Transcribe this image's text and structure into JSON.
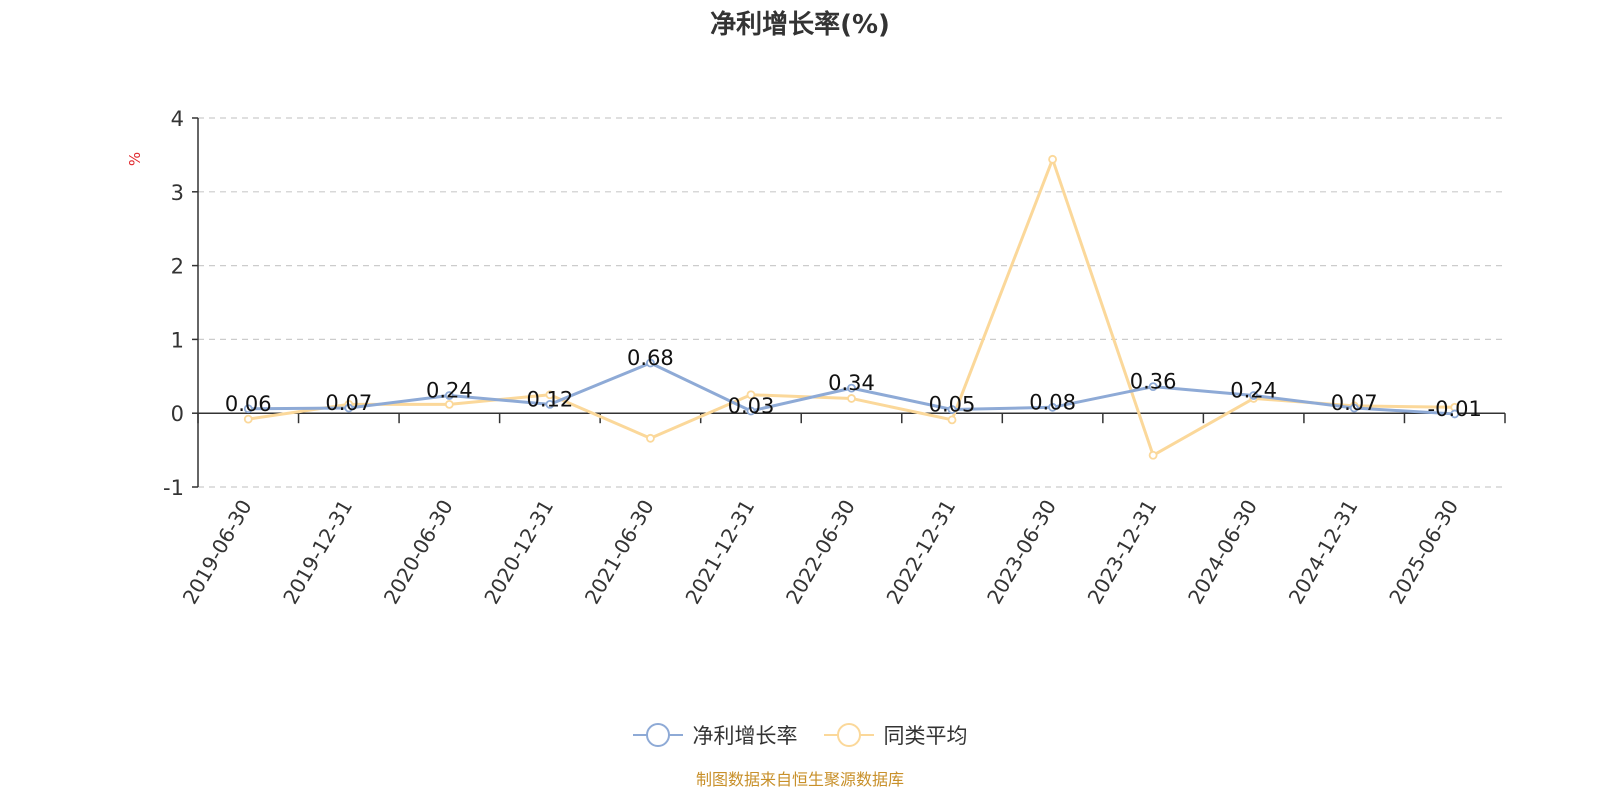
{
  "chart_data": {
    "type": "line",
    "title": "净利增长率(%)",
    "ylabel": "%",
    "ylim": [
      -1,
      4
    ],
    "yticks": [
      -1,
      0,
      1,
      2,
      3,
      4
    ],
    "grid": true,
    "legend_position": "bottom",
    "categories": [
      "2019-06-30",
      "2019-12-31",
      "2020-06-30",
      "2020-12-31",
      "2021-06-30",
      "2021-12-31",
      "2022-06-30",
      "2022-12-31",
      "2023-06-30",
      "2023-12-31",
      "2024-06-30",
      "2024-12-31",
      "2025-06-30"
    ],
    "series": [
      {
        "name": "净利增长率",
        "color": "#8eaad6",
        "show_labels": true,
        "values": [
          0.06,
          0.07,
          0.24,
          0.12,
          0.68,
          0.03,
          0.34,
          0.05,
          0.08,
          0.36,
          0.24,
          0.07,
          -0.01
        ]
      },
      {
        "name": "同类平均",
        "color": "#fbd89a",
        "show_labels": false,
        "values": [
          -0.08,
          0.12,
          0.12,
          0.25,
          -0.34,
          0.25,
          0.2,
          -0.09,
          3.44,
          -0.57,
          0.2,
          0.1,
          0.08
        ]
      }
    ]
  },
  "source_note": "制图数据来自恒生聚源数据库"
}
